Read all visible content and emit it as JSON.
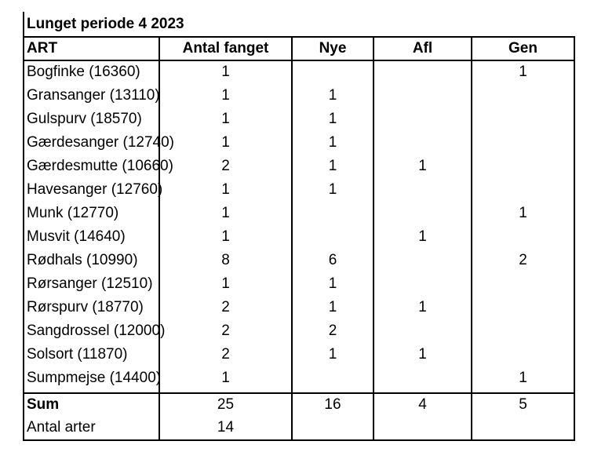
{
  "title": "Lunget periode 4 2023",
  "headers": {
    "art": "ART",
    "antal": "Antal fanget",
    "nye": "Nye",
    "afl": "Afl",
    "gen": "Gen"
  },
  "rows": [
    {
      "art": "Bogfinke (16360)",
      "antal": "1",
      "nye": "",
      "afl": "",
      "gen": "1"
    },
    {
      "art": "Gransanger (13110)",
      "antal": "1",
      "nye": "1",
      "afl": "",
      "gen": ""
    },
    {
      "art": "Gulspurv (18570)",
      "antal": "1",
      "nye": "1",
      "afl": "",
      "gen": ""
    },
    {
      "art": "Gærdesanger (12740)",
      "antal": "1",
      "nye": "1",
      "afl": "",
      "gen": ""
    },
    {
      "art": "Gærdesmutte (10660)",
      "antal": "2",
      "nye": "1",
      "afl": "1",
      "gen": ""
    },
    {
      "art": "Havesanger (12760)",
      "antal": "1",
      "nye": "1",
      "afl": "",
      "gen": ""
    },
    {
      "art": "Munk (12770)",
      "antal": "1",
      "nye": "",
      "afl": "",
      "gen": "1"
    },
    {
      "art": "Musvit (14640)",
      "antal": "1",
      "nye": "",
      "afl": "1",
      "gen": ""
    },
    {
      "art": "Rødhals (10990)",
      "antal": "8",
      "nye": "6",
      "afl": "",
      "gen": "2"
    },
    {
      "art": "Rørsanger (12510)",
      "antal": "1",
      "nye": "1",
      "afl": "",
      "gen": ""
    },
    {
      "art": "Rørspurv (18770)",
      "antal": "2",
      "nye": "1",
      "afl": "1",
      "gen": ""
    },
    {
      "art": "Sangdrossel (12000)",
      "antal": "2",
      "nye": "2",
      "afl": "",
      "gen": ""
    },
    {
      "art": "Solsort (11870)",
      "antal": "2",
      "nye": "1",
      "afl": "1",
      "gen": ""
    },
    {
      "art": "Sumpmejse (14400)",
      "antal": "1",
      "nye": "",
      "afl": "",
      "gen": "1"
    }
  ],
  "sum": {
    "label": "Sum",
    "antal": "25",
    "nye": "16",
    "afl": "4",
    "gen": "5"
  },
  "antal_arter": {
    "label": "Antal arter",
    "antal": "14"
  }
}
